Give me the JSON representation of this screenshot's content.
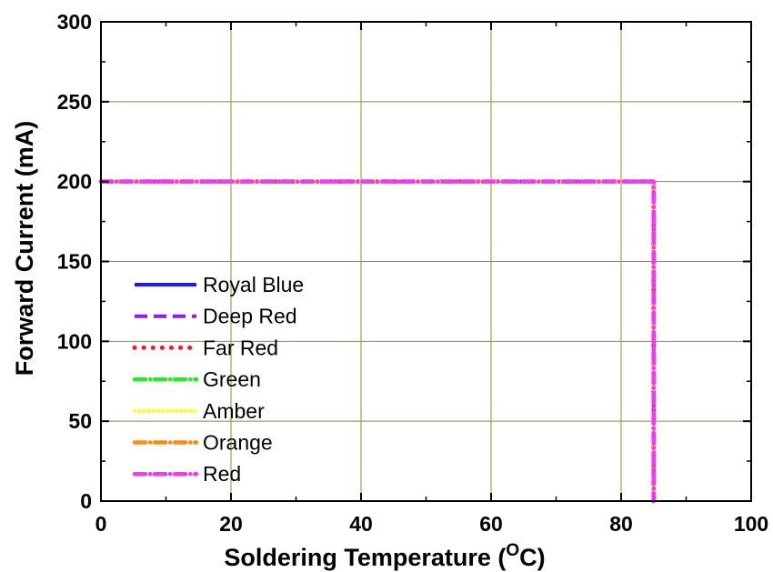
{
  "chart_data": {
    "type": "line",
    "xlabel": "Soldering Temperature (",
    "xlabel_sup": "O",
    "xlabel_unit": "C)",
    "ylabel": "Forward Current (mA)",
    "xlim": [
      0,
      100
    ],
    "ylim": [
      0,
      300
    ],
    "xticks": [
      "0",
      "20",
      "40",
      "60",
      "80",
      "100"
    ],
    "yticks": [
      "0",
      "50",
      "100",
      "150",
      "200",
      "250",
      "300"
    ],
    "grid": true,
    "grid_color": "#8b8f2a",
    "legend_position": "bottom-left",
    "series": [
      {
        "name": "Royal Blue",
        "color": "#1a1aff",
        "style": "solid",
        "x": [
          0,
          85,
          85
        ],
        "y": [
          200,
          200,
          0
        ]
      },
      {
        "name": "Deep Red",
        "color": "#8b1aff",
        "style": "dash",
        "x": [
          0,
          85,
          85
        ],
        "y": [
          200,
          200,
          0
        ]
      },
      {
        "name": "Far Red",
        "color": "#ff1a1a",
        "style": "dot",
        "x": [
          0,
          85,
          85
        ],
        "y": [
          200,
          200,
          0
        ]
      },
      {
        "name": "Green",
        "color": "#22ee22",
        "style": "dashdot",
        "x": [
          0,
          85,
          85
        ],
        "y": [
          200,
          200,
          0
        ]
      },
      {
        "name": "Amber",
        "color": "#ffff33",
        "style": "shortdot",
        "x": [
          0,
          85,
          85
        ],
        "y": [
          200,
          200,
          0
        ]
      },
      {
        "name": "Orange",
        "color": "#ff8c1a",
        "style": "dashdot",
        "x": [
          0,
          85,
          85
        ],
        "y": [
          200,
          200,
          0
        ]
      },
      {
        "name": "Red",
        "color": "#ff33ff",
        "style": "dashdot",
        "x": [
          0,
          85,
          85
        ],
        "y": [
          200,
          200,
          0
        ]
      }
    ]
  }
}
